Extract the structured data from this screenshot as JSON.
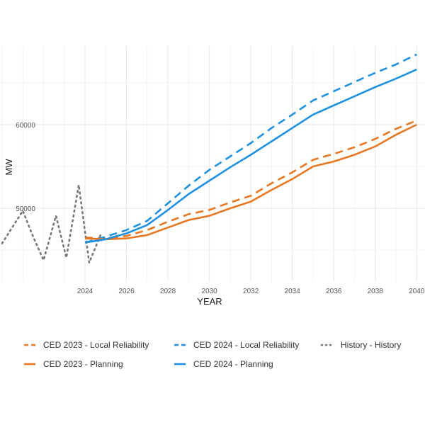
{
  "chart_data": {
    "type": "line",
    "xlabel": "YEAR",
    "ylabel": "MW",
    "title": "",
    "xlim": [
      2019.9,
      2040.4
    ],
    "ylim": [
      41200,
      69400
    ],
    "x_ticks": [
      2024,
      2026,
      2028,
      2030,
      2032,
      2034,
      2036,
      2038,
      2040
    ],
    "y_ticks": [
      50000,
      60000
    ],
    "grid": true,
    "legend_position": "bottom",
    "series": [
      {
        "name": "CED 2023 - Local Reliability",
        "color": "#E87722",
        "style": "dashed",
        "points": [
          [
            2024,
            46500
          ],
          [
            2025,
            46400
          ],
          [
            2026,
            46700
          ],
          [
            2027,
            47400
          ],
          [
            2028,
            48400
          ],
          [
            2029,
            49300
          ],
          [
            2030,
            49800
          ],
          [
            2031,
            50700
          ],
          [
            2032,
            51500
          ],
          [
            2033,
            53000
          ],
          [
            2034,
            54300
          ],
          [
            2035,
            55800
          ],
          [
            2036,
            56500
          ],
          [
            2037,
            57300
          ],
          [
            2038,
            58300
          ],
          [
            2039,
            59500
          ],
          [
            2040,
            60500
          ]
        ]
      },
      {
        "name": "CED 2024 - Local Reliability",
        "color": "#1E90E0",
        "style": "dashed",
        "points": [
          [
            2024,
            45900
          ],
          [
            2025,
            46600
          ],
          [
            2026,
            47400
          ],
          [
            2027,
            48500
          ],
          [
            2028,
            50600
          ],
          [
            2029,
            52700
          ],
          [
            2030,
            54600
          ],
          [
            2031,
            56200
          ],
          [
            2032,
            57800
          ],
          [
            2033,
            59600
          ],
          [
            2034,
            61200
          ],
          [
            2035,
            62900
          ],
          [
            2036,
            64000
          ],
          [
            2037,
            65100
          ],
          [
            2038,
            66200
          ],
          [
            2039,
            67200
          ],
          [
            2040,
            68400
          ]
        ]
      },
      {
        "name": "History - History",
        "color": "#777777",
        "style": "dotted",
        "points": [
          [
            2020,
            45800
          ],
          [
            2021,
            49700
          ],
          [
            2021.5,
            46600
          ],
          [
            2022,
            43800
          ],
          [
            2022.6,
            49100
          ],
          [
            2023.1,
            44100
          ],
          [
            2023.7,
            52800
          ],
          [
            2024.2,
            43500
          ],
          [
            2024.8,
            47100
          ]
        ]
      },
      {
        "name": "CED 2023 - Planning",
        "color": "#E87722",
        "style": "solid",
        "points": [
          [
            2024,
            46400
          ],
          [
            2025,
            46300
          ],
          [
            2026,
            46400
          ],
          [
            2027,
            46800
          ],
          [
            2028,
            47700
          ],
          [
            2029,
            48600
          ],
          [
            2030,
            49100
          ],
          [
            2031,
            50000
          ],
          [
            2032,
            50800
          ],
          [
            2033,
            52200
          ],
          [
            2034,
            53500
          ],
          [
            2035,
            55000
          ],
          [
            2036,
            55600
          ],
          [
            2037,
            56400
          ],
          [
            2038,
            57400
          ],
          [
            2039,
            58800
          ],
          [
            2040,
            60000
          ]
        ]
      },
      {
        "name": "CED 2024 - Planning",
        "color": "#1E90E0",
        "style": "solid",
        "points": [
          [
            2024,
            45900
          ],
          [
            2025,
            46300
          ],
          [
            2026,
            47000
          ],
          [
            2027,
            48000
          ],
          [
            2028,
            49800
          ],
          [
            2029,
            51700
          ],
          [
            2030,
            53300
          ],
          [
            2031,
            54900
          ],
          [
            2032,
            56400
          ],
          [
            2033,
            58000
          ],
          [
            2034,
            59600
          ],
          [
            2035,
            61200
          ],
          [
            2036,
            62300
          ],
          [
            2037,
            63400
          ],
          [
            2038,
            64500
          ],
          [
            2039,
            65500
          ],
          [
            2040,
            66600
          ]
        ]
      }
    ]
  }
}
